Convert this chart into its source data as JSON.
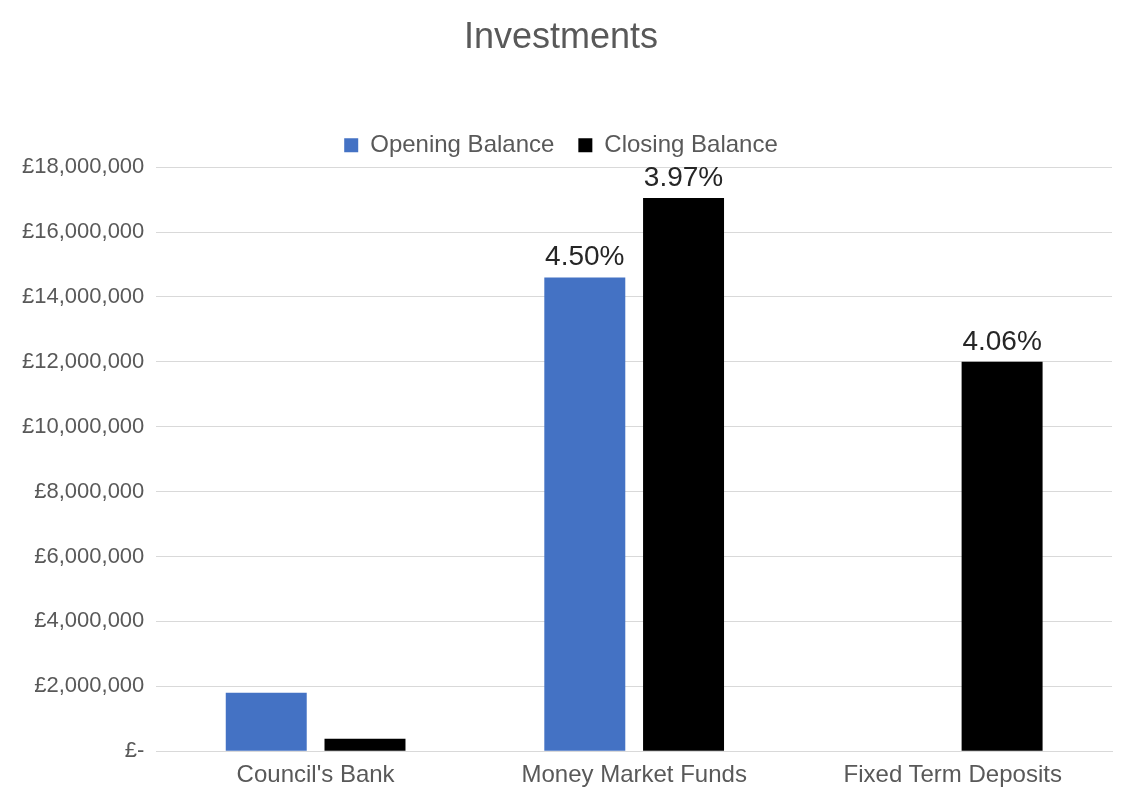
{
  "chart_data": {
    "type": "bar",
    "title": "Investments",
    "categories": [
      "Council's Bank",
      "Money Market Funds",
      "Fixed Term Deposits"
    ],
    "series": [
      {
        "name": "Opening Balance",
        "color": "#4472c4",
        "values": [
          1800000,
          14600000,
          null
        ]
      },
      {
        "name": "Closing Balance",
        "color": "#000000",
        "values": [
          380000,
          17050000,
          12000000
        ]
      }
    ],
    "annotations": [
      "4.50%",
      "3.97%",
      "4.06%"
    ],
    "ylim": [
      0,
      18000000
    ],
    "yticks": [
      {
        "value": 0,
        "label": "£-"
      },
      {
        "value": 2000000,
        "label": "£2,000,000"
      },
      {
        "value": 4000000,
        "label": "£4,000,000"
      },
      {
        "value": 6000000,
        "label": "£6,000,000"
      },
      {
        "value": 8000000,
        "label": "£8,000,000"
      },
      {
        "value": 10000000,
        "label": "£10,000,000"
      },
      {
        "value": 12000000,
        "label": "£12,000,000"
      },
      {
        "value": 14000000,
        "label": "£14,000,000"
      },
      {
        "value": 16000000,
        "label": "£16,000,000"
      },
      {
        "value": 18000000,
        "label": "£18,000,000"
      }
    ],
    "grid": "y",
    "legend": "top"
  }
}
